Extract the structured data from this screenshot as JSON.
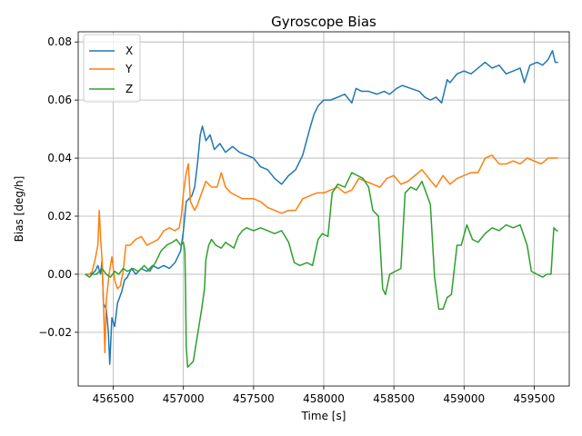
{
  "chart_data": {
    "type": "line",
    "title": "Gyroscope Bias",
    "xlabel": "Time [s]",
    "ylabel": "Bias [deg/h]",
    "xlim": [
      456250,
      459750
    ],
    "ylim": [
      -0.0385,
      0.0835
    ],
    "xticks": [
      456500,
      457000,
      457500,
      458000,
      458500,
      459000,
      459500
    ],
    "xtick_labels": [
      "456500",
      "457000",
      "457500",
      "458000",
      "458500",
      "459000",
      "459500"
    ],
    "yticks": [
      -0.02,
      0.0,
      0.02,
      0.04,
      0.06,
      0.08
    ],
    "ytick_labels": [
      "−0.02",
      "0.00",
      "0.02",
      "0.04",
      "0.06",
      "0.08"
    ],
    "grid": true,
    "legend": "top-left",
    "series": [
      {
        "name": "X",
        "color": "#1f77b4",
        "points": [
          [
            456300,
            0.0
          ],
          [
            456340,
            0.0
          ],
          [
            456370,
            0.001
          ],
          [
            456390,
            0.003
          ],
          [
            456410,
            0.0
          ],
          [
            456420,
            0.005
          ],
          [
            456430,
            -0.01
          ],
          [
            456450,
            -0.012
          ],
          [
            456465,
            -0.02
          ],
          [
            456475,
            -0.031
          ],
          [
            456490,
            -0.015
          ],
          [
            456510,
            -0.018
          ],
          [
            456530,
            -0.01
          ],
          [
            456560,
            -0.006
          ],
          [
            456580,
            -0.002
          ],
          [
            456600,
            -0.001
          ],
          [
            456630,
            0.002
          ],
          [
            456660,
            0.0
          ],
          [
            456700,
            0.002
          ],
          [
            456740,
            0.001
          ],
          [
            456780,
            0.003
          ],
          [
            456820,
            0.002
          ],
          [
            456860,
            0.003
          ],
          [
            456900,
            0.002
          ],
          [
            456940,
            0.004
          ],
          [
            456980,
            0.008
          ],
          [
            457000,
            0.015
          ],
          [
            457020,
            0.025
          ],
          [
            457040,
            0.026
          ],
          [
            457060,
            0.027
          ],
          [
            457080,
            0.03
          ],
          [
            457100,
            0.038
          ],
          [
            457120,
            0.048
          ],
          [
            457135,
            0.051
          ],
          [
            457160,
            0.046
          ],
          [
            457190,
            0.048
          ],
          [
            457220,
            0.043
          ],
          [
            457260,
            0.045
          ],
          [
            457300,
            0.042
          ],
          [
            457350,
            0.044
          ],
          [
            457400,
            0.042
          ],
          [
            457450,
            0.041
          ],
          [
            457500,
            0.04
          ],
          [
            457550,
            0.037
          ],
          [
            457600,
            0.036
          ],
          [
            457650,
            0.033
          ],
          [
            457700,
            0.031
          ],
          [
            457750,
            0.034
          ],
          [
            457800,
            0.036
          ],
          [
            457850,
            0.041
          ],
          [
            457900,
            0.05
          ],
          [
            457930,
            0.055
          ],
          [
            457960,
            0.058
          ],
          [
            458000,
            0.06
          ],
          [
            458050,
            0.06
          ],
          [
            458100,
            0.061
          ],
          [
            458150,
            0.062
          ],
          [
            458200,
            0.059
          ],
          [
            458230,
            0.064
          ],
          [
            458270,
            0.063
          ],
          [
            458320,
            0.063
          ],
          [
            458380,
            0.062
          ],
          [
            458430,
            0.063
          ],
          [
            458470,
            0.062
          ],
          [
            458520,
            0.064
          ],
          [
            458560,
            0.065
          ],
          [
            458620,
            0.064
          ],
          [
            458680,
            0.063
          ],
          [
            458720,
            0.061
          ],
          [
            458760,
            0.06
          ],
          [
            458800,
            0.061
          ],
          [
            458840,
            0.059
          ],
          [
            458880,
            0.067
          ],
          [
            458900,
            0.066
          ],
          [
            458950,
            0.069
          ],
          [
            459000,
            0.07
          ],
          [
            459050,
            0.069
          ],
          [
            459100,
            0.071
          ],
          [
            459150,
            0.073
          ],
          [
            459200,
            0.071
          ],
          [
            459250,
            0.072
          ],
          [
            459300,
            0.069
          ],
          [
            459350,
            0.07
          ],
          [
            459400,
            0.071
          ],
          [
            459430,
            0.066
          ],
          [
            459470,
            0.072
          ],
          [
            459520,
            0.073
          ],
          [
            459560,
            0.072
          ],
          [
            459600,
            0.074
          ],
          [
            459630,
            0.077
          ],
          [
            459650,
            0.073
          ],
          [
            459670,
            0.073
          ]
        ]
      },
      {
        "name": "Y",
        "color": "#ff7f0e",
        "points": [
          [
            456300,
            0.0
          ],
          [
            456330,
            0.0
          ],
          [
            456350,
            0.001
          ],
          [
            456370,
            0.005
          ],
          [
            456390,
            0.01
          ],
          [
            456400,
            0.022
          ],
          [
            456410,
            0.012
          ],
          [
            456420,
            0.005
          ],
          [
            456430,
            -0.01
          ],
          [
            456440,
            -0.027
          ],
          [
            456450,
            -0.009
          ],
          [
            456470,
            0.0
          ],
          [
            456490,
            0.006
          ],
          [
            456510,
            -0.002
          ],
          [
            456530,
            -0.005
          ],
          [
            456550,
            -0.004
          ],
          [
            456570,
            0.001
          ],
          [
            456590,
            0.01
          ],
          [
            456620,
            0.01
          ],
          [
            456660,
            0.012
          ],
          [
            456700,
            0.013
          ],
          [
            456740,
            0.01
          ],
          [
            456780,
            0.011
          ],
          [
            456820,
            0.012
          ],
          [
            456860,
            0.015
          ],
          [
            456900,
            0.016
          ],
          [
            456940,
            0.015
          ],
          [
            456970,
            0.016
          ],
          [
            456985,
            0.02
          ],
          [
            457000,
            0.028
          ],
          [
            457020,
            0.035
          ],
          [
            457035,
            0.038
          ],
          [
            457050,
            0.025
          ],
          [
            457080,
            0.022
          ],
          [
            457100,
            0.024
          ],
          [
            457130,
            0.028
          ],
          [
            457160,
            0.032
          ],
          [
            457200,
            0.03
          ],
          [
            457240,
            0.03
          ],
          [
            457270,
            0.035
          ],
          [
            457300,
            0.03
          ],
          [
            457340,
            0.028
          ],
          [
            457380,
            0.027
          ],
          [
            457420,
            0.026
          ],
          [
            457460,
            0.026
          ],
          [
            457500,
            0.026
          ],
          [
            457550,
            0.025
          ],
          [
            457600,
            0.023
          ],
          [
            457650,
            0.022
          ],
          [
            457700,
            0.021
          ],
          [
            457750,
            0.022
          ],
          [
            457800,
            0.022
          ],
          [
            457850,
            0.026
          ],
          [
            457900,
            0.027
          ],
          [
            457950,
            0.028
          ],
          [
            458000,
            0.028
          ],
          [
            458050,
            0.029
          ],
          [
            458100,
            0.03
          ],
          [
            458150,
            0.028
          ],
          [
            458200,
            0.029
          ],
          [
            458250,
            0.033
          ],
          [
            458300,
            0.032
          ],
          [
            458350,
            0.031
          ],
          [
            458400,
            0.03
          ],
          [
            458450,
            0.033
          ],
          [
            458500,
            0.034
          ],
          [
            458550,
            0.031
          ],
          [
            458600,
            0.032
          ],
          [
            458650,
            0.034
          ],
          [
            458700,
            0.036
          ],
          [
            458750,
            0.033
          ],
          [
            458800,
            0.03
          ],
          [
            458850,
            0.034
          ],
          [
            458900,
            0.031
          ],
          [
            458950,
            0.033
          ],
          [
            459000,
            0.034
          ],
          [
            459050,
            0.035
          ],
          [
            459100,
            0.035
          ],
          [
            459150,
            0.04
          ],
          [
            459200,
            0.041
          ],
          [
            459250,
            0.038
          ],
          [
            459300,
            0.038
          ],
          [
            459350,
            0.039
          ],
          [
            459400,
            0.038
          ],
          [
            459450,
            0.04
          ],
          [
            459500,
            0.039
          ],
          [
            459550,
            0.038
          ],
          [
            459600,
            0.04
          ],
          [
            459650,
            0.04
          ],
          [
            459670,
            0.04
          ]
        ]
      },
      {
        "name": "Z",
        "color": "#2ca02c",
        "points": [
          [
            456300,
            0.0
          ],
          [
            456330,
            -0.001
          ],
          [
            456350,
            0.0
          ],
          [
            456380,
            0.0
          ],
          [
            456420,
            0.002
          ],
          [
            456450,
            0.0
          ],
          [
            456480,
            -0.001
          ],
          [
            456510,
            0.001
          ],
          [
            456540,
            0.0
          ],
          [
            456570,
            0.002
          ],
          [
            456600,
            0.001
          ],
          [
            456640,
            0.002
          ],
          [
            456680,
            0.001
          ],
          [
            456720,
            0.003
          ],
          [
            456760,
            0.001
          ],
          [
            456800,
            0.004
          ],
          [
            456840,
            0.008
          ],
          [
            456880,
            0.01
          ],
          [
            456920,
            0.011
          ],
          [
            456950,
            0.012
          ],
          [
            456980,
            0.01
          ],
          [
            457000,
            0.011
          ],
          [
            457010,
            0.008
          ],
          [
            457015,
            -0.005
          ],
          [
            457020,
            -0.025
          ],
          [
            457030,
            -0.032
          ],
          [
            457050,
            -0.031
          ],
          [
            457070,
            -0.03
          ],
          [
            457090,
            -0.024
          ],
          [
            457110,
            -0.018
          ],
          [
            457130,
            -0.012
          ],
          [
            457150,
            -0.005
          ],
          [
            457160,
            0.005
          ],
          [
            457180,
            0.01
          ],
          [
            457200,
            0.012
          ],
          [
            457230,
            0.01
          ],
          [
            457270,
            0.009
          ],
          [
            457300,
            0.011
          ],
          [
            457330,
            0.01
          ],
          [
            457360,
            0.009
          ],
          [
            457390,
            0.013
          ],
          [
            457420,
            0.015
          ],
          [
            457450,
            0.016
          ],
          [
            457500,
            0.015
          ],
          [
            457550,
            0.016
          ],
          [
            457600,
            0.015
          ],
          [
            457650,
            0.014
          ],
          [
            457700,
            0.015
          ],
          [
            457750,
            0.011
          ],
          [
            457790,
            0.004
          ],
          [
            457830,
            0.003
          ],
          [
            457880,
            0.004
          ],
          [
            457920,
            0.003
          ],
          [
            457960,
            0.012
          ],
          [
            457990,
            0.014
          ],
          [
            458030,
            0.013
          ],
          [
            458060,
            0.028
          ],
          [
            458100,
            0.031
          ],
          [
            458150,
            0.03
          ],
          [
            458200,
            0.035
          ],
          [
            458240,
            0.034
          ],
          [
            458280,
            0.033
          ],
          [
            458320,
            0.03
          ],
          [
            458350,
            0.022
          ],
          [
            458390,
            0.02
          ],
          [
            458420,
            -0.005
          ],
          [
            458440,
            -0.007
          ],
          [
            458470,
            0.0
          ],
          [
            458510,
            0.001
          ],
          [
            458550,
            0.002
          ],
          [
            458580,
            0.028
          ],
          [
            458620,
            0.03
          ],
          [
            458660,
            0.029
          ],
          [
            458700,
            0.032
          ],
          [
            458730,
            0.028
          ],
          [
            458760,
            0.024
          ],
          [
            458790,
            -0.001
          ],
          [
            458820,
            -0.012
          ],
          [
            458850,
            -0.012
          ],
          [
            458880,
            -0.008
          ],
          [
            458910,
            -0.007
          ],
          [
            458950,
            0.01
          ],
          [
            458980,
            0.01
          ],
          [
            459020,
            0.017
          ],
          [
            459060,
            0.012
          ],
          [
            459100,
            0.011
          ],
          [
            459150,
            0.014
          ],
          [
            459200,
            0.016
          ],
          [
            459250,
            0.015
          ],
          [
            459300,
            0.017
          ],
          [
            459350,
            0.016
          ],
          [
            459400,
            0.017
          ],
          [
            459450,
            0.01
          ],
          [
            459480,
            0.001
          ],
          [
            459520,
            0.0
          ],
          [
            459560,
            -0.001
          ],
          [
            459590,
            0.0
          ],
          [
            459620,
            0.0
          ],
          [
            459640,
            0.016
          ],
          [
            459660,
            0.015
          ],
          [
            459670,
            0.015
          ]
        ]
      }
    ]
  }
}
